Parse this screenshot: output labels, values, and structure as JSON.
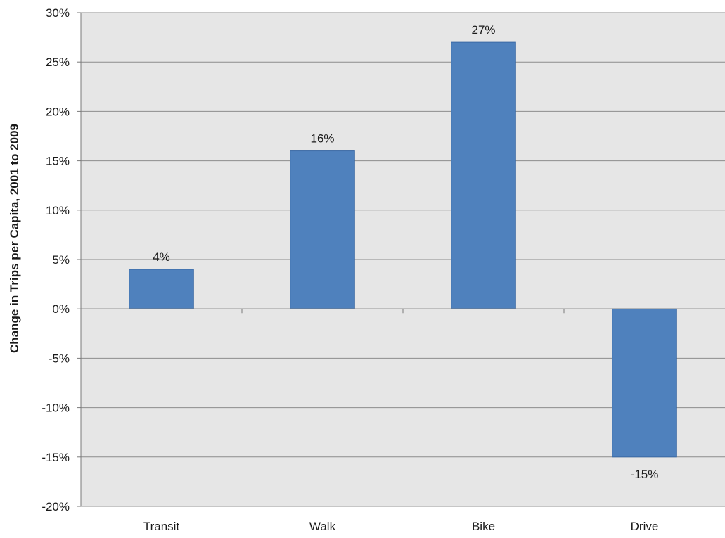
{
  "chart_data": {
    "type": "bar",
    "categories": [
      "Transit",
      "Walk",
      "Bike",
      "Drive"
    ],
    "values": [
      4,
      16,
      27,
      -15
    ],
    "data_labels": [
      "4%",
      "16%",
      "27%",
      "-15%"
    ],
    "title": "",
    "xlabel": "",
    "ylabel": "Change in Trips per Capita, 2001 to 2009",
    "ylim": [
      -20,
      30
    ],
    "yticks": [
      30,
      25,
      20,
      15,
      10,
      5,
      0,
      -5,
      -10,
      -15,
      -20
    ],
    "ytick_labels": [
      "30%",
      "25%",
      "20%",
      "15%",
      "10%",
      "5%",
      "0%",
      "-5%",
      "-10%",
      "-15%",
      "-20%"
    ],
    "grid": true,
    "legend": "none",
    "colors": {
      "bar": "#4f81bd",
      "bar_edge": "#3a6aa5",
      "plot_background": "#e6e6e6",
      "gridline": "#8c8c8c"
    }
  }
}
